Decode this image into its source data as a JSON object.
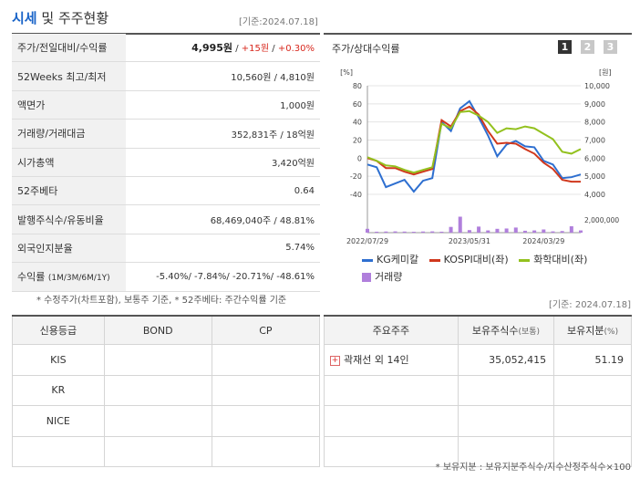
{
  "header": {
    "title_part1": "시세",
    "title_part2": " 및 주주현황",
    "base_date": "[기준:2024.07.18]"
  },
  "quote": {
    "rows": [
      {
        "label": "주가/전일대비/수익률",
        "price": "4,995원",
        "sep1": " / ",
        "change": "+15원",
        "sep2": " / ",
        "pct": "+0.30%"
      },
      {
        "label": "52Weeks 최고/최저",
        "value": "10,560원 / 4,810원"
      },
      {
        "label": "액면가",
        "value": "1,000원"
      },
      {
        "label": "거래량/거래대금",
        "value": "352,831주 / 18억원"
      },
      {
        "label": "시가총액",
        "value": "3,420억원"
      },
      {
        "label": "52주베타",
        "value": "0.64"
      },
      {
        "label": "발행주식수/유동비율",
        "value": "68,469,040주 / 48.81%"
      },
      {
        "label": "외국인지분율",
        "value": "5.74%"
      },
      {
        "label": "수익률",
        "label_sub": "(1M/3M/6M/1Y)",
        "value": "-5.40%/ -7.84%/ -20.71%/ -48.61%"
      }
    ],
    "note": "* 수정주가(차트포함), 보통주 기준, * 52주베타: 주간수익률 기준",
    "date_right": "[기준: 2024.07.18]"
  },
  "chart": {
    "title": "주가/상대수익률",
    "period_buttons": [
      "1",
      "2",
      "3"
    ],
    "left_unit": "[%]",
    "right_unit": "[원]",
    "legend": {
      "s1": "KG케미칼",
      "s2": "KOSPI대비(좌)",
      "s3": "화학대비(좌)",
      "s4": "거래량"
    },
    "colors": {
      "s1": "#2e6fd0",
      "s2": "#d0381d",
      "s3": "#93c11e",
      "vol": "#b07fdc"
    }
  },
  "chart_data": {
    "type": "line",
    "x_ticks": [
      "2022/07/29",
      "2023/05/31",
      "2024/03/29"
    ],
    "y_left_ticks": [
      "80",
      "60",
      "40",
      "20",
      "0",
      "-20",
      "-40"
    ],
    "y_right_ticks": [
      "10,000",
      "9,000",
      "8,000",
      "7,000",
      "6,000",
      "5,000",
      "4,000"
    ],
    "y_left_range": [
      -40,
      80
    ],
    "volume_axis_label": "2,000,000",
    "series": [
      {
        "name": "KG케미칼",
        "values": [
          -7,
          -10,
          -32,
          -28,
          -24,
          -37,
          -25,
          -22,
          40,
          30,
          55,
          63,
          45,
          25,
          2,
          15,
          19,
          13,
          12,
          -3,
          -7,
          -22,
          -21,
          -18
        ]
      },
      {
        "name": "KOSPI대비(좌)",
        "values": [
          0,
          -3,
          -11,
          -11,
          -15,
          -18,
          -15,
          -12,
          42,
          35,
          52,
          57,
          48,
          30,
          16,
          17,
          16,
          10,
          5,
          -5,
          -12,
          -24,
          -26,
          -26
        ]
      },
      {
        "name": "화학대비(좌)",
        "values": [
          1,
          -3,
          -8,
          -9,
          -13,
          -16,
          -13,
          -10,
          38,
          33,
          51,
          52,
          47,
          40,
          28,
          33,
          32,
          35,
          33,
          27,
          21,
          7,
          5,
          10
        ]
      },
      {
        "name": "거래량",
        "values": [
          600000,
          150000,
          180000,
          200000,
          170000,
          140000,
          180000,
          200000,
          150000,
          900000,
          2500000,
          400000,
          950000,
          350000,
          600000,
          650000,
          800000,
          300000,
          350000,
          500000,
          200000,
          250000,
          1000000,
          350000
        ]
      }
    ]
  },
  "credit": {
    "headers": [
      "신용등급",
      "BOND",
      "CP"
    ],
    "rows": [
      {
        "name": "KIS",
        "bond": "",
        "cp": ""
      },
      {
        "name": "KR",
        "bond": "",
        "cp": ""
      },
      {
        "name": "NICE",
        "bond": "",
        "cp": ""
      },
      {
        "name": "",
        "bond": "",
        "cp": ""
      }
    ]
  },
  "holders": {
    "headers": [
      "주요주주",
      "보유주식수",
      "(보통)",
      "보유지분",
      "(%)"
    ],
    "rows": [
      {
        "name": "곽재선 외 14인",
        "shares": "35,052,415",
        "pct": "51.19"
      }
    ],
    "note": "* 보유지분 : 보유지분주식수/지수산정주식수×100"
  }
}
